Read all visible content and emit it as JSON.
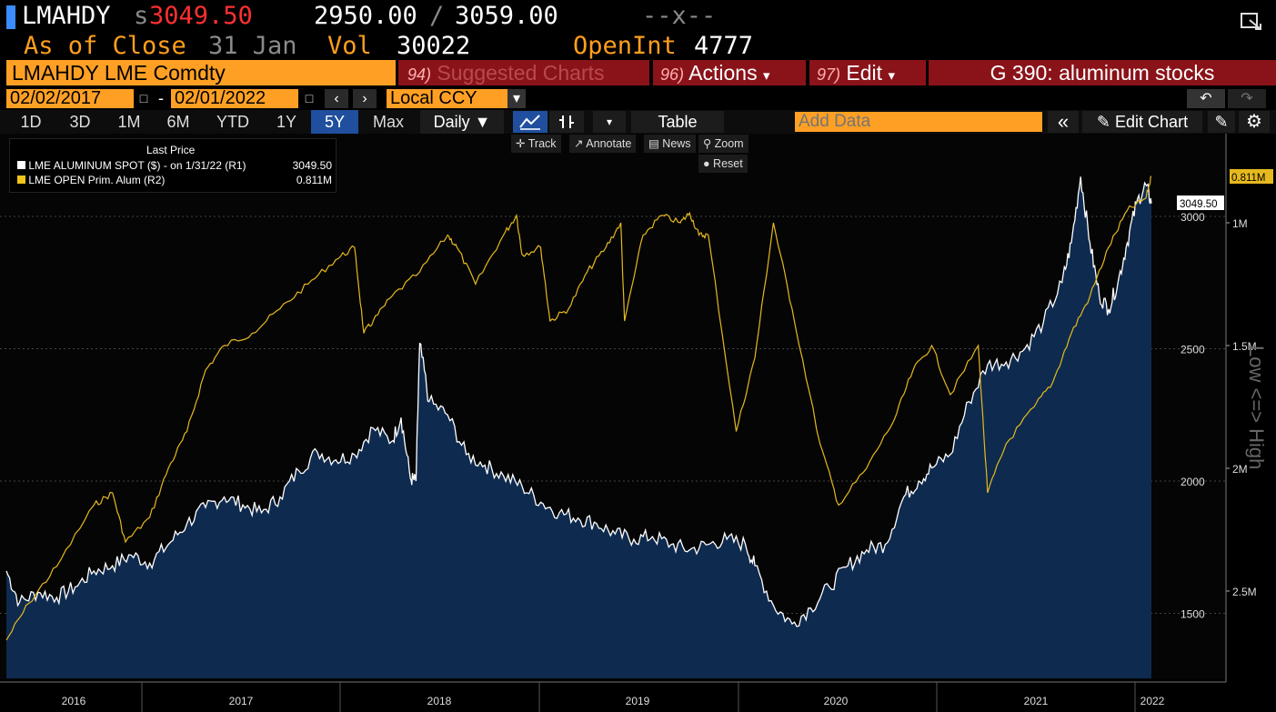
{
  "header": {
    "ticker": "LMAHDY",
    "price_prefix": "s",
    "price": "3049.50",
    "bid": "2950.00",
    "ask": "3059.00",
    "slash": "/",
    "change": "--x--",
    "as_of_label": "As of Close",
    "as_of_date": "31 Jan",
    "vol_label": "Vol",
    "vol": "30022",
    "openint_label": "OpenInt",
    "openint": "4777"
  },
  "toolbar": {
    "security": "LMAHDY LME Comdty",
    "suggested_num": "94)",
    "suggested": "Suggested Charts",
    "actions_num": "96)",
    "actions": "Actions",
    "edit_num": "97)",
    "edit": "Edit",
    "chart_title": "G 390: aluminum stocks",
    "dropdown_icon": "▾"
  },
  "dates": {
    "start": "02/02/2017",
    "dash": "-",
    "end": "02/01/2022",
    "currency": "Local CCY"
  },
  "periods": [
    {
      "label": "1D",
      "selected": false
    },
    {
      "label": "3D",
      "selected": false
    },
    {
      "label": "1M",
      "selected": false
    },
    {
      "label": "6M",
      "selected": false
    },
    {
      "label": "YTD",
      "selected": false
    },
    {
      "label": "1Y",
      "selected": false
    },
    {
      "label": "5Y",
      "selected": true
    },
    {
      "label": "Max",
      "selected": false
    }
  ],
  "controls": {
    "frequency": "Daily ▼",
    "table": "Table",
    "add_data_placeholder": "Add Data",
    "edit_chart": "Edit Chart",
    "collapse": "«"
  },
  "tools": {
    "track": "Track",
    "annotate": "Annotate",
    "news": "News",
    "zoom": "Zoom",
    "reset": "Reset"
  },
  "legend": {
    "title": "Last Price",
    "items": [
      {
        "label": "LME ALUMINUM SPOT ($) -  on 1/31/22  (R1)",
        "value": "3049.50",
        "color": "#ffffff"
      },
      {
        "label": "LME OPEN Prim. Alum  (R2)",
        "value": "0.811M",
        "color": "#f0c419"
      }
    ]
  },
  "colors": {
    "price_line": "#ffffff",
    "area_fill": "#0e2a4e",
    "stocks_line": "#e6b91e",
    "accent": "#ffa024",
    "maroon": "#8a1319"
  },
  "chart_data": {
    "type": "line",
    "x_ticks": [
      "2016",
      "2017",
      "2018",
      "2019",
      "2020",
      "2021",
      "2022"
    ],
    "y_right1": {
      "ticks": [
        "1500",
        "2000",
        "2500",
        "3000"
      ],
      "range": [
        1260,
        3530
      ],
      "last": "3049.50"
    },
    "y_right2": {
      "ticks": [
        "1M",
        "1.5M",
        "2M",
        "2.5M"
      ],
      "range_millions": [
        3.0,
        0.575
      ],
      "last": "0.811M",
      "inverted": true,
      "label": "Low <=> High"
    },
    "series": [
      {
        "name": "LME ALUMINUM SPOT ($)",
        "points": [
          [
            2016.08,
            1660
          ],
          [
            2016.15,
            1540
          ],
          [
            2016.25,
            1580
          ],
          [
            2016.35,
            1560
          ],
          [
            2016.45,
            1600
          ],
          [
            2016.55,
            1660
          ],
          [
            2016.65,
            1680
          ],
          [
            2016.75,
            1720
          ],
          [
            2016.85,
            1690
          ],
          [
            2016.95,
            1760
          ],
          [
            2017.05,
            1840
          ],
          [
            2017.15,
            1900
          ],
          [
            2017.25,
            1940
          ],
          [
            2017.35,
            1910
          ],
          [
            2017.45,
            1880
          ],
          [
            2017.55,
            1940
          ],
          [
            2017.65,
            2040
          ],
          [
            2017.75,
            2110
          ],
          [
            2017.85,
            2080
          ],
          [
            2017.95,
            2100
          ],
          [
            2018.05,
            2200
          ],
          [
            2018.15,
            2150
          ],
          [
            2018.2,
            2240
          ],
          [
            2018.25,
            2010
          ],
          [
            2018.28,
            2000
          ],
          [
            2018.3,
            2520
          ],
          [
            2018.35,
            2300
          ],
          [
            2018.45,
            2250
          ],
          [
            2018.55,
            2100
          ],
          [
            2018.65,
            2060
          ],
          [
            2018.75,
            2020
          ],
          [
            2018.85,
            1980
          ],
          [
            2018.95,
            1920
          ],
          [
            2019.05,
            1880
          ],
          [
            2019.15,
            1860
          ],
          [
            2019.25,
            1840
          ],
          [
            2019.35,
            1800
          ],
          [
            2019.45,
            1780
          ],
          [
            2019.55,
            1790
          ],
          [
            2019.65,
            1760
          ],
          [
            2019.75,
            1740
          ],
          [
            2019.85,
            1760
          ],
          [
            2019.95,
            1780
          ],
          [
            2020.05,
            1760
          ],
          [
            2020.1,
            1680
          ],
          [
            2020.2,
            1530
          ],
          [
            2020.3,
            1460
          ],
          [
            2020.4,
            1520
          ],
          [
            2020.5,
            1600
          ],
          [
            2020.6,
            1680
          ],
          [
            2020.7,
            1740
          ],
          [
            2020.8,
            1760
          ],
          [
            2020.9,
            1940
          ],
          [
            2020.98,
            2000
          ],
          [
            2021.05,
            2050
          ],
          [
            2021.15,
            2100
          ],
          [
            2021.25,
            2300
          ],
          [
            2021.35,
            2440
          ],
          [
            2021.45,
            2450
          ],
          [
            2021.55,
            2500
          ],
          [
            2021.65,
            2600
          ],
          [
            2021.75,
            2750
          ],
          [
            2021.8,
            2900
          ],
          [
            2021.85,
            3150
          ],
          [
            2021.9,
            2900
          ],
          [
            2021.95,
            2700
          ],
          [
            2022.0,
            2650
          ],
          [
            2022.05,
            2750
          ],
          [
            2022.1,
            2900
          ],
          [
            2022.15,
            3050
          ],
          [
            2022.2,
            3120
          ],
          [
            2022.23,
            3049.5
          ]
        ]
      },
      {
        "name": "LME OPEN Prim. Alum",
        "points_millions": [
          [
            2016.08,
            2.7
          ],
          [
            2016.2,
            2.55
          ],
          [
            2016.35,
            2.4
          ],
          [
            2016.55,
            2.15
          ],
          [
            2016.65,
            2.1
          ],
          [
            2016.72,
            2.3
          ],
          [
            2016.85,
            2.2
          ],
          [
            2016.95,
            2.0
          ],
          [
            2017.05,
            1.85
          ],
          [
            2017.15,
            1.6
          ],
          [
            2017.25,
            1.5
          ],
          [
            2017.4,
            1.45
          ],
          [
            2017.55,
            1.35
          ],
          [
            2017.7,
            1.25
          ],
          [
            2017.85,
            1.15
          ],
          [
            2017.95,
            1.1
          ],
          [
            2018.0,
            1.45
          ],
          [
            2018.05,
            1.4
          ],
          [
            2018.15,
            1.3
          ],
          [
            2018.3,
            1.2
          ],
          [
            2018.45,
            1.05
          ],
          [
            2018.5,
            1.1
          ],
          [
            2018.6,
            1.25
          ],
          [
            2018.75,
            1.05
          ],
          [
            2018.82,
            0.97
          ],
          [
            2018.85,
            1.13
          ],
          [
            2018.95,
            1.1
          ],
          [
            2019.0,
            1.4
          ],
          [
            2019.1,
            1.35
          ],
          [
            2019.2,
            1.2
          ],
          [
            2019.3,
            1.1
          ],
          [
            2019.38,
            1.0
          ],
          [
            2019.4,
            1.4
          ],
          [
            2019.5,
            1.05
          ],
          [
            2019.6,
            0.97
          ],
          [
            2019.7,
            1.0
          ],
          [
            2019.75,
            0.96
          ],
          [
            2019.8,
            1.05
          ],
          [
            2019.85,
            1.05
          ],
          [
            2020.0,
            1.85
          ],
          [
            2020.1,
            1.55
          ],
          [
            2020.2,
            1.0
          ],
          [
            2020.3,
            1.35
          ],
          [
            2020.45,
            1.9
          ],
          [
            2020.55,
            2.15
          ],
          [
            2020.7,
            2.0
          ],
          [
            2020.85,
            1.8
          ],
          [
            2020.95,
            1.6
          ],
          [
            2021.05,
            1.5
          ],
          [
            2021.15,
            1.7
          ],
          [
            2021.3,
            1.5
          ],
          [
            2021.35,
            2.1
          ],
          [
            2021.45,
            1.9
          ],
          [
            2021.6,
            1.75
          ],
          [
            2021.7,
            1.65
          ],
          [
            2021.8,
            1.45
          ],
          [
            2021.9,
            1.3
          ],
          [
            2022.0,
            1.1
          ],
          [
            2022.1,
            0.95
          ],
          [
            2022.2,
            0.9
          ],
          [
            2022.23,
            0.811
          ]
        ]
      }
    ]
  }
}
